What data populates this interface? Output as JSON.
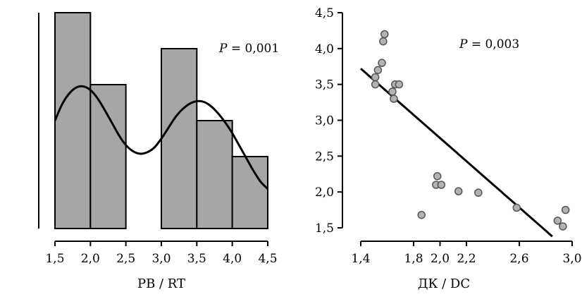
{
  "colors": {
    "bar_fill": "#a6a6a6",
    "bar_stroke": "#000000",
    "point_fill": "#b3b3b3",
    "point_stroke": "#555555",
    "line": "#000000",
    "axis": "#000000",
    "background": "#ffffff"
  },
  "chart_data": [
    {
      "type": "bar",
      "subtype": "histogram",
      "title": "",
      "xlabel": "PB / RT",
      "ylabel": "",
      "annotation": {
        "prefix": "P",
        "value": " = 0,001"
      },
      "bins": [
        {
          "from": 1.5,
          "to": 2.0,
          "count": 6
        },
        {
          "from": 2.0,
          "to": 2.5,
          "count": 4
        },
        {
          "from": 2.5,
          "to": 3.0,
          "count": 0
        },
        {
          "from": 3.0,
          "to": 3.5,
          "count": 5
        },
        {
          "from": 3.5,
          "to": 4.0,
          "count": 3
        },
        {
          "from": 4.0,
          "to": 4.5,
          "count": 2
        }
      ],
      "xlim": [
        1.5,
        4.5
      ],
      "ylim": [
        0,
        6
      ],
      "xticks": [
        "1,5",
        "2,0",
        "2,5",
        "3,0",
        "3,5",
        "4,0",
        "4,5"
      ],
      "density_curve": {
        "x": [
          1.5,
          1.6,
          1.7,
          1.8,
          1.9,
          2.0,
          2.1,
          2.2,
          2.3,
          2.4,
          2.5,
          2.6,
          2.7,
          2.8,
          2.9,
          3.0,
          3.1,
          3.2,
          3.3,
          3.4,
          3.5,
          3.6,
          3.7,
          3.8,
          3.9,
          4.0,
          4.1,
          4.2,
          4.3,
          4.4,
          4.5
        ],
        "y": [
          3.0,
          3.45,
          3.75,
          3.92,
          3.95,
          3.85,
          3.62,
          3.3,
          2.95,
          2.6,
          2.32,
          2.15,
          2.08,
          2.12,
          2.25,
          2.5,
          2.8,
          3.1,
          3.32,
          3.47,
          3.54,
          3.52,
          3.4,
          3.2,
          2.95,
          2.65,
          2.3,
          1.95,
          1.6,
          1.3,
          1.1
        ]
      }
    },
    {
      "type": "scatter",
      "title": "",
      "xlabel": "ДК / DC",
      "ylabel": "",
      "annotation": {
        "prefix": "P",
        "value": " = 0,003"
      },
      "points": [
        {
          "x": 1.58,
          "y": 4.2
        },
        {
          "x": 1.57,
          "y": 4.1
        },
        {
          "x": 1.56,
          "y": 3.8
        },
        {
          "x": 1.53,
          "y": 3.7
        },
        {
          "x": 1.51,
          "y": 3.6
        },
        {
          "x": 1.51,
          "y": 3.5
        },
        {
          "x": 1.66,
          "y": 3.5
        },
        {
          "x": 1.69,
          "y": 3.5
        },
        {
          "x": 1.64,
          "y": 3.4
        },
        {
          "x": 1.65,
          "y": 3.3
        },
        {
          "x": 1.98,
          "y": 2.22
        },
        {
          "x": 1.97,
          "y": 2.1
        },
        {
          "x": 2.01,
          "y": 2.1
        },
        {
          "x": 2.14,
          "y": 2.01
        },
        {
          "x": 2.29,
          "y": 1.99
        },
        {
          "x": 1.86,
          "y": 1.68
        },
        {
          "x": 2.58,
          "y": 1.78
        },
        {
          "x": 2.89,
          "y": 1.6
        },
        {
          "x": 2.93,
          "y": 1.52
        },
        {
          "x": 2.95,
          "y": 1.75
        }
      ],
      "regression_line": {
        "x": [
          1.4,
          2.85
        ],
        "y": [
          3.72,
          1.38
        ]
      },
      "xlim": [
        1.4,
        3.0
      ],
      "ylim": [
        1.5,
        4.5
      ],
      "xticks": [
        "1,4",
        "1,8",
        "2,0",
        "2,2",
        "2,6",
        "3,0"
      ],
      "yticks": [
        "1,5",
        "2,0",
        "2,5",
        "3,0",
        "3,5",
        "4,0",
        "4,5"
      ]
    }
  ]
}
